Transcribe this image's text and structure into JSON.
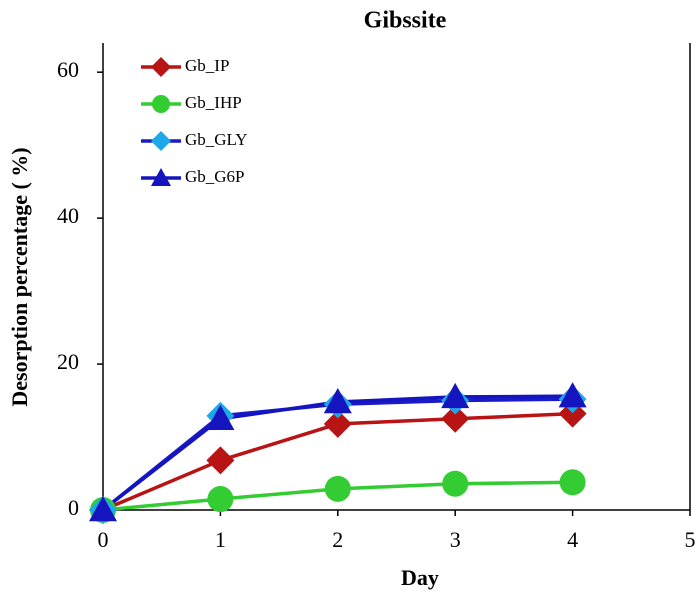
{
  "chart_data": {
    "type": "line",
    "title": "Gibssite",
    "x_label": "Day",
    "y_label": "Desorption percentage ( %)",
    "x": [
      0,
      1,
      2,
      3,
      4
    ],
    "series": [
      {
        "name": "Gb_IP",
        "color": "#b81414",
        "marker_color": "#b81414",
        "marker": "diamond",
        "values": [
          0,
          6.8,
          11.8,
          12.5,
          13.2
        ]
      },
      {
        "name": "Gb_IHP",
        "color": "#33cc33",
        "marker_color": "#33cc33",
        "marker": "circle",
        "values": [
          0,
          1.5,
          2.9,
          3.6,
          3.8
        ]
      },
      {
        "name": "Gb_GLY",
        "color": "#1a1ac8",
        "marker_color": "#1fa8e8",
        "marker": "diamond",
        "values": [
          0,
          12.9,
          14.5,
          15.0,
          15.2
        ]
      },
      {
        "name": "Gb_G6P",
        "color": "#1515c0",
        "marker_color": "#1515c0",
        "marker": "triangle",
        "values": [
          0,
          12.5,
          14.8,
          15.5,
          15.6
        ]
      }
    ],
    "xlim": [
      0,
      5
    ],
    "xticks": [
      0,
      1,
      2,
      3,
      4,
      5
    ],
    "ylim": [
      0,
      64
    ],
    "yticks": [
      0,
      20,
      40,
      60
    ],
    "legend": "upper left"
  }
}
